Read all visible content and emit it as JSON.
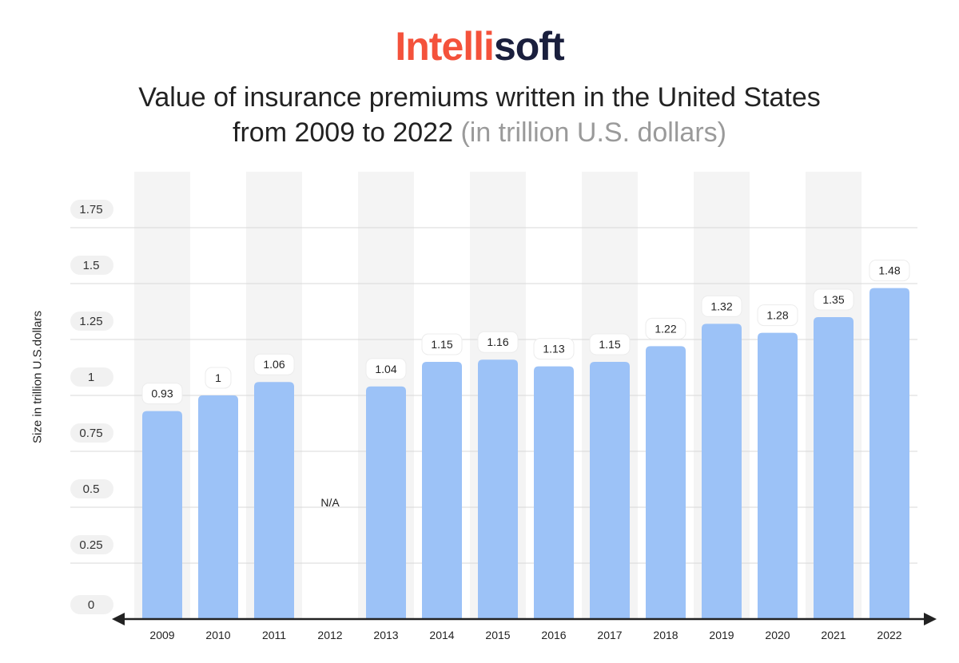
{
  "logo": {
    "part1": "Intelli",
    "part2": "soft"
  },
  "title": {
    "line1": "Value of insurance premiums written in the United States",
    "line2_main": "from 2009 to 2022",
    "line2_muted": "(in trillion U.S. dollars)"
  },
  "colors": {
    "bar": "#9cc2f7",
    "band": "#f4f4f4",
    "grid": "#d9d9d9",
    "axis": "#222222",
    "accent": "#f4523b",
    "dark": "#1a1f3d"
  },
  "chart_data": {
    "type": "bar",
    "title": "Value of insurance premiums written in the United States from 2009 to 2022 (in trillion U.S. dollars)",
    "xlabel": "",
    "ylabel": "Size in trillion U.S.dollars",
    "ylim": [
      0,
      1.75
    ],
    "yticks": [
      0,
      0.25,
      0.5,
      0.75,
      1,
      1.25,
      1.5,
      1.75
    ],
    "ytick_labels": [
      "0",
      "0.25",
      "0.5",
      "0.75",
      "1",
      "1.25",
      "1.5",
      "1.75"
    ],
    "categories": [
      "2009",
      "2010",
      "2011",
      "2012",
      "2013",
      "2014",
      "2015",
      "2016",
      "2017",
      "2018",
      "2019",
      "2020",
      "2021",
      "2022"
    ],
    "values": [
      0.93,
      1,
      1.06,
      null,
      1.04,
      1.15,
      1.16,
      1.13,
      1.15,
      1.22,
      1.32,
      1.28,
      1.35,
      1.48
    ],
    "value_labels": [
      "0.93",
      "1",
      "1.06",
      "N/A",
      "1.04",
      "1.15",
      "1.16",
      "1.13",
      "1.15",
      "1.22",
      "1.32",
      "1.28",
      "1.35",
      "1.48"
    ],
    "shaded_bands": [
      "2009",
      "2011",
      "2013",
      "2015",
      "2017",
      "2019",
      "2021"
    ],
    "grid": true
  }
}
